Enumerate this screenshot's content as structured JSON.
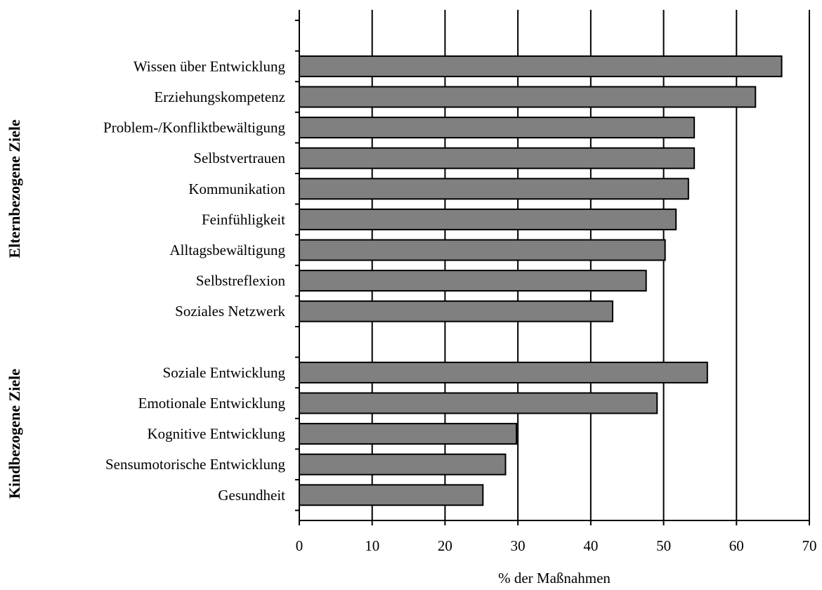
{
  "chart_data": {
    "type": "bar",
    "orientation": "horizontal",
    "xlabel": "% der Maßnahmen",
    "xlim": [
      0,
      70
    ],
    "xticks": [
      0,
      10,
      20,
      30,
      40,
      50,
      60,
      70
    ],
    "grid": true,
    "groups": [
      {
        "name": "Elternbezogene Ziele",
        "categories": [
          "Wissen über Entwicklung",
          "Erziehungskompetenz",
          "Problem-/Konfliktbewältigung",
          "Selbstvertrauen",
          "Kommunikation",
          "Feinfühligkeit",
          "Alltagsbewältigung",
          "Selbstreflexion",
          "Soziales Netzwerk"
        ],
        "values": [
          66.2,
          62.6,
          54.2,
          54.2,
          53.4,
          51.7,
          50.2,
          47.6,
          43.0
        ]
      },
      {
        "name": "Kindbezogene Ziele",
        "categories": [
          "Soziale Entwicklung",
          "Emotionale Entwicklung",
          "Kognitive Entwicklung",
          "Sensumotorische Entwicklung",
          "Gesundheit"
        ],
        "values": [
          56.0,
          49.1,
          29.8,
          28.3,
          25.2
        ]
      }
    ],
    "colors": {
      "bar": "#808080",
      "stroke": "#000000"
    }
  }
}
